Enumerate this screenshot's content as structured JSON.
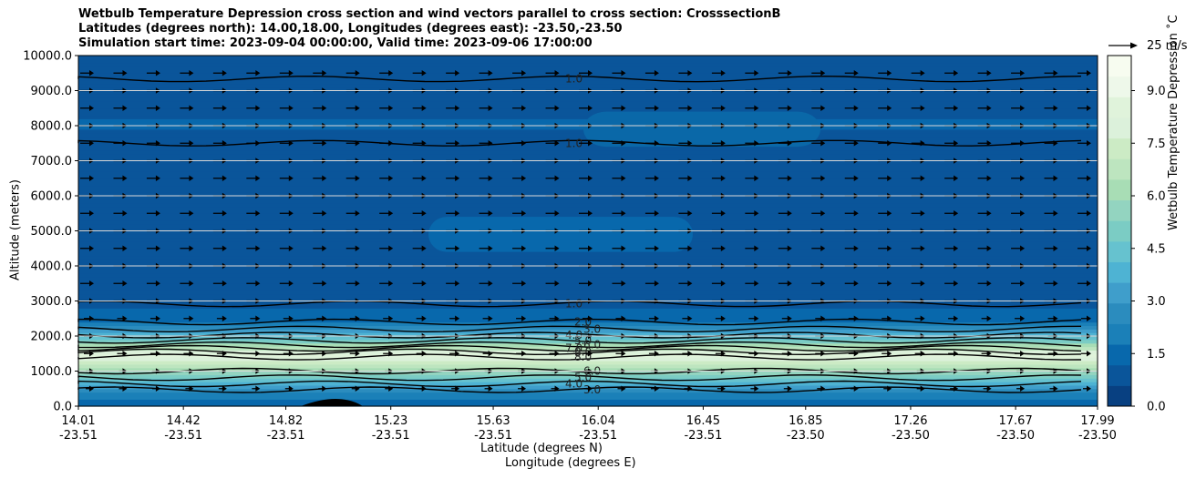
{
  "title": {
    "line1": "Wetbulb Temperature Depression cross section and wind vectors parallel to cross section: CrosssectionB",
    "line2": "Latitudes (degrees north): 14.00,18.00, Longitudes (degrees east): -23.50,-23.50",
    "line3": "Simulation start time: 2023-09-04 00:00:00, Valid time: 2023-09-06 17:00:00"
  },
  "quiver_key": "25 m/s",
  "colorbar": {
    "label": "Wetbulb Temperature Depression ˚C",
    "ticks": [
      "0.0",
      "1.5",
      "3.0",
      "4.5",
      "6.0",
      "7.5",
      "9.0"
    ],
    "range": [
      0,
      10
    ],
    "colors": [
      "#084081",
      "#0a559a",
      "#0868ac",
      "#1b80b8",
      "#2b8cbe",
      "#3f9ecb",
      "#4eb3d3",
      "#66c2cf",
      "#7bccc4",
      "#93d4c0",
      "#a8ddb5",
      "#bde5bf",
      "#ccebc5",
      "#dcf1db",
      "#e0f3db",
      "#eef8ea",
      "#f7fcf0"
    ]
  },
  "chart_data": {
    "type": "contourf",
    "xlabel": "Latitude (degrees N)",
    "xlabel2": "Longitude (degrees E)",
    "ylabel": "Altitude (meters)",
    "xlim": [
      14.01,
      17.99
    ],
    "ylim": [
      0,
      10000
    ],
    "y_ticks": [
      "0.0",
      "1000.0",
      "2000.0",
      "3000.0",
      "4000.0",
      "5000.0",
      "6000.0",
      "7000.0",
      "8000.0",
      "9000.0",
      "10000.0"
    ],
    "x_ticks": [
      {
        "lat": "14.01",
        "lon": "-23.51"
      },
      {
        "lat": "14.42",
        "lon": "-23.51"
      },
      {
        "lat": "14.82",
        "lon": "-23.51"
      },
      {
        "lat": "15.23",
        "lon": "-23.51"
      },
      {
        "lat": "15.63",
        "lon": "-23.51"
      },
      {
        "lat": "16.04",
        "lon": "-23.51"
      },
      {
        "lat": "16.45",
        "lon": "-23.51"
      },
      {
        "lat": "16.85",
        "lon": "-23.50"
      },
      {
        "lat": "17.26",
        "lon": "-23.50"
      },
      {
        "lat": "17.67",
        "lon": "-23.50"
      },
      {
        "lat": "17.99",
        "lon": "-23.50"
      }
    ],
    "vertical_profile": [
      {
        "altitude": 0,
        "depression": 1.2
      },
      {
        "altitude": 300,
        "depression": 2.0
      },
      {
        "altitude": 600,
        "depression": 3.8
      },
      {
        "altitude": 900,
        "depression": 5.5
      },
      {
        "altitude": 1200,
        "depression": 7.0
      },
      {
        "altitude": 1500,
        "depression": 8.5
      },
      {
        "altitude": 1800,
        "depression": 5.5
      },
      {
        "altitude": 2100,
        "depression": 3.5
      },
      {
        "altitude": 2500,
        "depression": 1.5
      },
      {
        "altitude": 3000,
        "depression": 0.9
      },
      {
        "altitude": 5000,
        "depression": 0.7
      },
      {
        "altitude": 7000,
        "depression": 0.8
      },
      {
        "altitude": 8000,
        "depression": 1.2
      },
      {
        "altitude": 10000,
        "depression": 0.9
      }
    ],
    "contour_levels": [
      "1.0",
      "2.0",
      "3.0",
      "4.0",
      "5.0",
      "6.0",
      "7.0",
      "8.0",
      "9.0"
    ],
    "wind_vector_direction": "parallel to cross section, toward increasing latitude"
  }
}
